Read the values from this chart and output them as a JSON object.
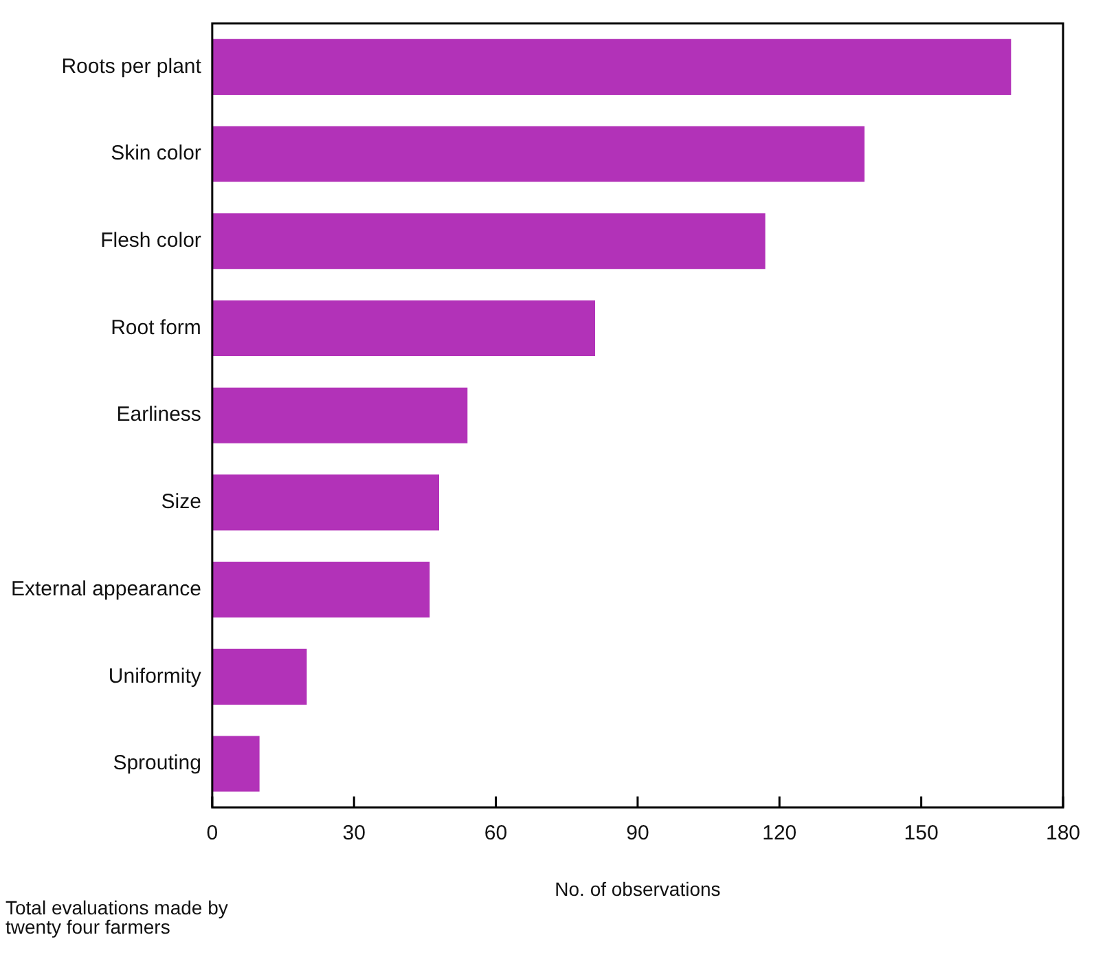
{
  "chart_data": {
    "type": "bar",
    "orientation": "horizontal",
    "xlabel": "No. of observations",
    "categories": [
      "Roots per plant",
      "Skin color",
      "Flesh color",
      "Root form",
      "Earliness",
      "Size",
      "External appearance",
      "Uniformity",
      "Sprouting"
    ],
    "values": [
      169,
      138,
      117,
      81,
      54,
      48,
      46,
      20,
      10
    ],
    "color": "#b232b8",
    "xlim": [
      0,
      180
    ],
    "xticks": [
      0,
      30,
      60,
      90,
      120,
      150,
      180
    ],
    "grid": false,
    "legend": false,
    "annotations": [
      "Total evaluations made by twenty four farmers"
    ]
  }
}
